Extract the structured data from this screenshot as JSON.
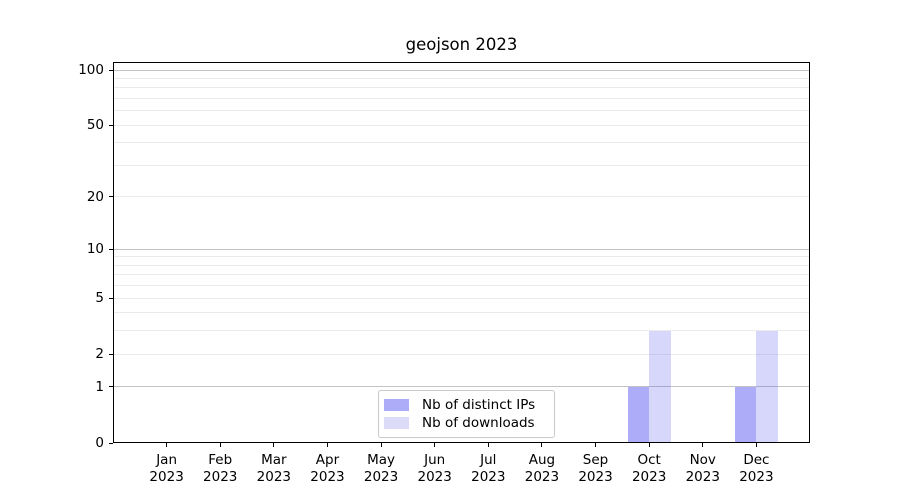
{
  "chart_data": {
    "type": "bar",
    "title": "geojson 2023",
    "categories": [
      "Jan 2023",
      "Feb 2023",
      "Mar 2023",
      "Apr 2023",
      "May 2023",
      "Jun 2023",
      "Jul 2023",
      "Aug 2023",
      "Sep 2023",
      "Oct 2023",
      "Nov 2023",
      "Dec 2023"
    ],
    "series": [
      {
        "name": "Nb of distinct IPs",
        "values": [
          0,
          0,
          0,
          0,
          0,
          0,
          0,
          0,
          0,
          1,
          0,
          1
        ],
        "fill": "rgba(89,89,241,0.5)",
        "legend_hex": "#acacf8"
      },
      {
        "name": "Nb of downloads",
        "values": [
          0,
          0,
          0,
          0,
          0,
          0,
          0,
          0,
          0,
          3,
          0,
          3
        ],
        "fill": "rgba(89,89,241,0.24)",
        "legend_hex": "#dcdcf8"
      }
    ],
    "xlabel": "",
    "ylabel": "",
    "y_axis": {
      "scale": "log1p",
      "ticks": [
        0,
        1,
        2,
        5,
        10,
        20,
        50,
        100
      ],
      "ylim": [
        0,
        110
      ]
    },
    "grid": {
      "major": [
        1,
        10,
        100
      ],
      "minor": [
        2,
        3,
        4,
        5,
        6,
        7,
        8,
        9,
        20,
        30,
        40,
        50,
        60,
        70,
        80,
        90
      ],
      "major_color": "#c3c3c3",
      "minor_color": "#ebebeb"
    },
    "legend": {
      "position": "lower center"
    },
    "colors": {
      "bar_base": "#5959f1",
      "axis": "#000000",
      "background": "#ffffff"
    }
  }
}
